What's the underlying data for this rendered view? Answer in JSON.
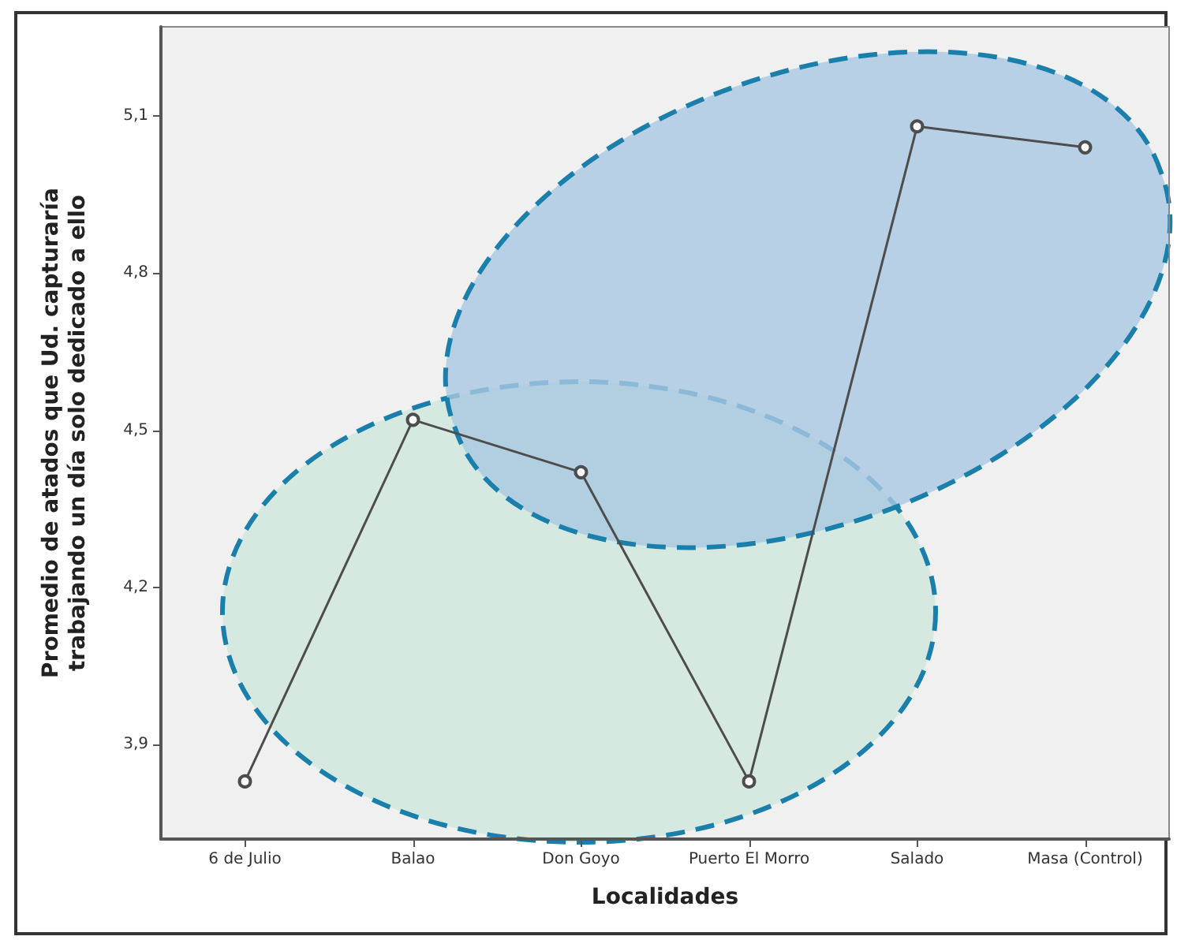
{
  "chart_data": {
    "type": "line",
    "xlabel": "Localidades",
    "ylabel": "Promedio de atados que Ud. capturaría trabajando un día solo dedicado a ello",
    "categories": [
      "6 de Julio",
      "Balao",
      "Don Goyo",
      "Puerto El Morro",
      "Salado",
      "Masa (Control)"
    ],
    "series": [
      {
        "color": "#4d4d4d",
        "values": [
          3.83,
          4.52,
          4.42,
          3.83,
          5.08,
          5.04
        ]
      }
    ],
    "ylim": [
      3.72,
      5.27
    ],
    "yticks": [
      {
        "value": 3.9,
        "label": "3,9"
      },
      {
        "value": 4.2,
        "label": "4,2"
      },
      {
        "value": 4.5,
        "label": "4,5"
      },
      {
        "value": 4.8,
        "label": "4,8"
      },
      {
        "value": 5.1,
        "label": "5,1"
      }
    ],
    "grid": false,
    "marker": "circle",
    "line_style": "solid"
  }
}
